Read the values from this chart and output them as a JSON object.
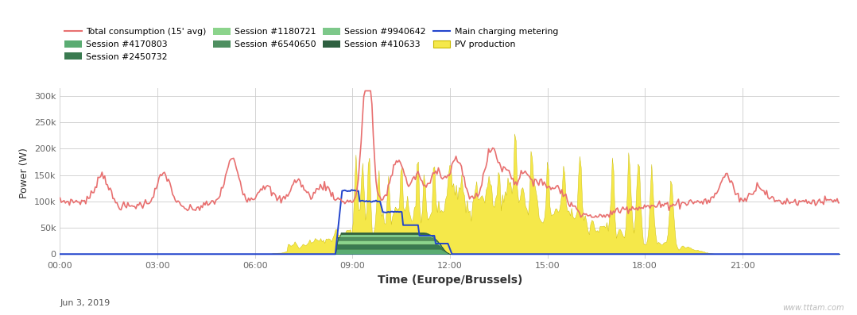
{
  "title": "",
  "xlabel": "Time (Europe/Brussels)",
  "ylabel": "Power (W)",
  "date_label": "Jun 3, 2019",
  "yticks": [
    0,
    50000,
    100000,
    150000,
    200000,
    250000,
    300000
  ],
  "ytick_labels": [
    "0",
    "50k",
    "100k",
    "150k",
    "200k",
    "250k",
    "300k"
  ],
  "xtick_labels": [
    "00:00",
    "03:00",
    "06:00",
    "09:00",
    "12:00",
    "15:00",
    "18:00",
    "21:00"
  ],
  "xtick_positions": [
    0,
    3,
    6,
    9,
    12,
    15,
    18,
    21
  ],
  "background_color": "#ffffff",
  "grid_color": "#cccccc",
  "colors": {
    "total_consumption": "#e87070",
    "pv_production": "#f5e84a",
    "pv_production_edge": "#c8b800",
    "session_4170803": "#5aac72",
    "session_2450732": "#3a7a50",
    "session_1180721": "#8cd48c",
    "session_6540650": "#4e8f60",
    "session_9940642": "#7dc88a",
    "session_410633": "#2e6040",
    "main_charging": "#2244cc",
    "zero_line": "#2244cc"
  },
  "watermark": "www.tttam.com"
}
